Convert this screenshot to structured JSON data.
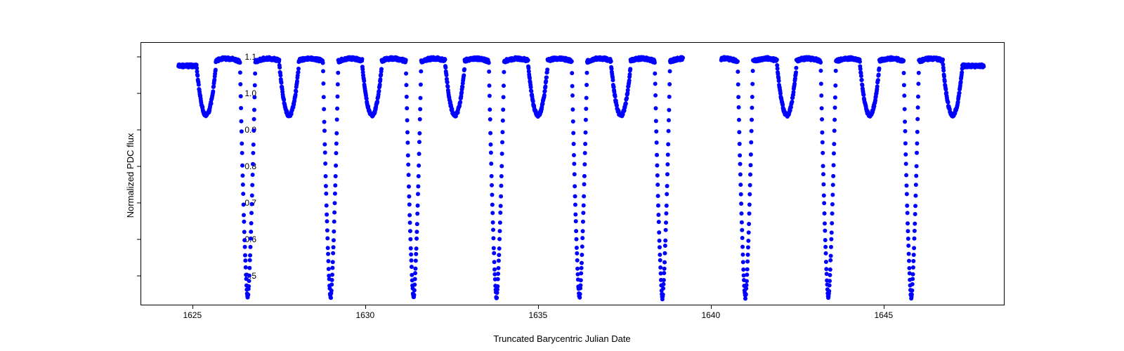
{
  "chart": {
    "type": "scatter",
    "xlabel": "Truncated Barycentric Julian Date",
    "ylabel": "Normalized PDC flux",
    "xlim": [
      1623.5,
      1648.5
    ],
    "ylim": [
      0.42,
      1.14
    ],
    "xtick_positions": [
      1625,
      1630,
      1635,
      1640,
      1645
    ],
    "xtick_labels": [
      "1625",
      "1630",
      "1635",
      "1640",
      "1645"
    ],
    "ytick_positions": [
      0.5,
      0.6,
      0.7,
      0.8,
      0.9,
      1.0,
      1.1
    ],
    "ytick_labels": [
      "0.5",
      "0.6",
      "0.7",
      "0.8",
      "0.9",
      "1.0",
      "1.1"
    ],
    "background_color": "#ffffff",
    "border_color": "#000000",
    "tick_fontsize": 12,
    "label_fontsize": 13,
    "marker_color": "#0000ff",
    "marker_size": 3,
    "period": 2.4,
    "primary_depth": 0.44,
    "secondary_depth": 0.94,
    "baseline_flux": 1.075,
    "peak_flux": 1.095,
    "primary_eclipse_centers": [
      1626.6,
      1629.0,
      1631.4,
      1633.8,
      1636.2,
      1638.6,
      1641.0,
      1643.4,
      1645.8
    ],
    "secondary_eclipse_centers": [
      1625.4,
      1627.8,
      1630.2,
      1632.6,
      1635.0,
      1637.4,
      1642.2,
      1644.6,
      1647.0
    ],
    "data_gap": [
      1639.2,
      1640.3
    ],
    "data_start": 1624.6,
    "data_end": 1647.9
  }
}
